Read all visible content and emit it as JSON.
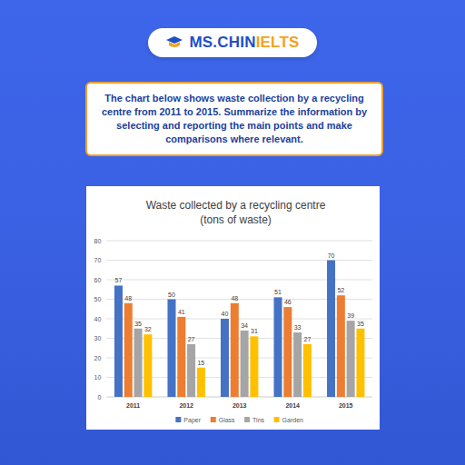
{
  "header": {
    "brand": "MS.CHIN",
    "brand_accent": "IELTS"
  },
  "prompt": {
    "text": "The chart below shows waste collection by a recycling centre from 2011 to 2015. Summarize the information by selecting and reporting the main points and make comparisons where relevant."
  },
  "chart_data": {
    "type": "bar",
    "title": "Waste collected by a recycling centre",
    "subtitle": "(tons of waste)",
    "categories": [
      "2011",
      "2012",
      "2013",
      "2014",
      "2015"
    ],
    "series": [
      {
        "name": "Paper",
        "color": "#4472c4",
        "values": [
          57,
          50,
          40,
          51,
          70
        ]
      },
      {
        "name": "Glass",
        "color": "#ed7d31",
        "values": [
          48,
          41,
          48,
          46,
          52
        ]
      },
      {
        "name": "Tins",
        "color": "#a5a5a5",
        "values": [
          35,
          27,
          34,
          33,
          39
        ]
      },
      {
        "name": "Garden",
        "color": "#ffc000",
        "values": [
          32,
          15,
          31,
          27,
          35
        ]
      }
    ],
    "ylim": [
      0,
      80
    ],
    "yticks": [
      0,
      10,
      20,
      30,
      40,
      50,
      60,
      70,
      80
    ],
    "grid": true,
    "data_labels": true,
    "legend": "bottom"
  }
}
